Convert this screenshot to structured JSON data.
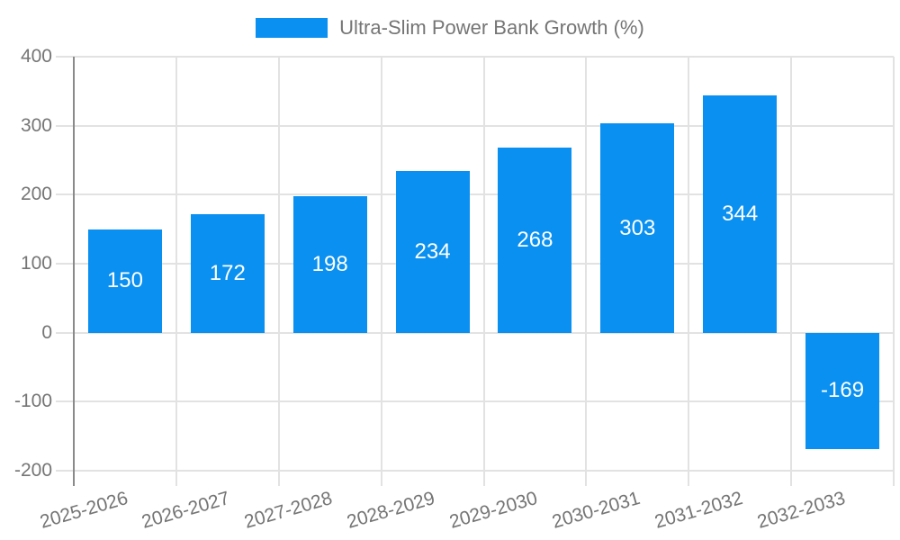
{
  "legend": {
    "label": "Ultra-Slim Power Bank Growth (%)"
  },
  "colors": {
    "bar": "#0a90f0",
    "axis_text": "#757575",
    "axis_line": "#8a8a8a",
    "gridline": "#e2e2e2",
    "bar_label": "#ffffff"
  },
  "chart_data": {
    "type": "bar",
    "title": "",
    "legend_entries": [
      "Ultra-Slim Power Bank Growth (%)"
    ],
    "categories": [
      "2025-2026",
      "2026-2027",
      "2027-2028",
      "2028-2029",
      "2029-2030",
      "2030-2031",
      "2031-2032",
      "2032-2033"
    ],
    "series": [
      {
        "name": "Ultra-Slim Power Bank Growth (%)",
        "values": [
          150,
          172,
          198,
          234,
          268,
          303,
          344,
          -169
        ]
      }
    ],
    "data_labels": [
      "150",
      "172",
      "198",
      "234",
      "268",
      "303",
      "344",
      "-169"
    ],
    "xlabel": "",
    "ylabel": "",
    "ylim": [
      -200,
      400
    ],
    "yticks": [
      400,
      300,
      200,
      100,
      0,
      -100,
      -200
    ],
    "ytick_labels": [
      "400",
      "300",
      "200",
      "100",
      "0",
      "-100",
      "-200"
    ],
    "grid": true,
    "legend_position": "top-center",
    "x_tick_label_rotation_deg": -16
  }
}
